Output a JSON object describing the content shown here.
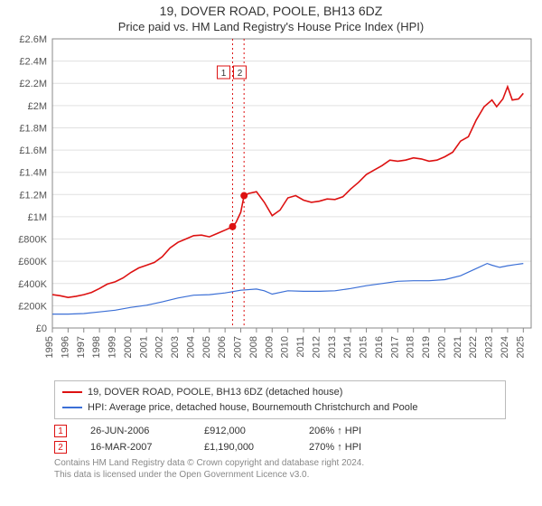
{
  "title_main": "19, DOVER ROAD, POOLE, BH13 6DZ",
  "title_sub": "Price paid vs. HM Land Registry's House Price Index (HPI)",
  "chart": {
    "type": "line",
    "background_color": "#ffffff",
    "grid_color": "#e0e0e0",
    "axis_color": "#888888",
    "xlim": [
      1995,
      2025.5
    ],
    "ylim": [
      0,
      2600000
    ],
    "xtick_years": [
      1995,
      1996,
      1997,
      1998,
      1999,
      2000,
      2001,
      2002,
      2003,
      2004,
      2005,
      2006,
      2007,
      2008,
      2009,
      2010,
      2011,
      2012,
      2013,
      2014,
      2015,
      2016,
      2017,
      2018,
      2019,
      2020,
      2021,
      2022,
      2023,
      2024,
      2025
    ],
    "yticks": [
      {
        "v": 0,
        "label": "£0"
      },
      {
        "v": 200000,
        "label": "£200K"
      },
      {
        "v": 400000,
        "label": "£400K"
      },
      {
        "v": 600000,
        "label": "£600K"
      },
      {
        "v": 800000,
        "label": "£800K"
      },
      {
        "v": 1000000,
        "label": "£1M"
      },
      {
        "v": 1200000,
        "label": "£1.2M"
      },
      {
        "v": 1400000,
        "label": "£1.4M"
      },
      {
        "v": 1600000,
        "label": "£1.6M"
      },
      {
        "v": 1800000,
        "label": "£1.8M"
      },
      {
        "v": 2000000,
        "label": "£2M"
      },
      {
        "v": 2200000,
        "label": "£2.2M"
      },
      {
        "v": 2400000,
        "label": "£2.4M"
      },
      {
        "v": 2600000,
        "label": "£2.6M"
      }
    ],
    "series": [
      {
        "name": "subject",
        "label": "19, DOVER ROAD, POOLE, BH13 6DZ (detached house)",
        "color": "#dd1111",
        "line_width": 1.6,
        "points": [
          [
            1995.0,
            300000
          ],
          [
            1995.5,
            290000
          ],
          [
            1996.0,
            275000
          ],
          [
            1996.5,
            285000
          ],
          [
            1997.0,
            300000
          ],
          [
            1997.5,
            320000
          ],
          [
            1998.0,
            355000
          ],
          [
            1998.5,
            395000
          ],
          [
            1999.0,
            415000
          ],
          [
            1999.5,
            450000
          ],
          [
            2000.0,
            500000
          ],
          [
            2000.5,
            540000
          ],
          [
            2001.0,
            565000
          ],
          [
            2001.5,
            590000
          ],
          [
            2002.0,
            640000
          ],
          [
            2002.5,
            720000
          ],
          [
            2003.0,
            770000
          ],
          [
            2003.5,
            800000
          ],
          [
            2004.0,
            830000
          ],
          [
            2004.5,
            835000
          ],
          [
            2005.0,
            820000
          ],
          [
            2005.5,
            850000
          ],
          [
            2006.0,
            880000
          ],
          [
            2006.48,
            912000
          ],
          [
            2006.7,
            950000
          ],
          [
            2007.0,
            1040000
          ],
          [
            2007.21,
            1190000
          ],
          [
            2007.5,
            1210000
          ],
          [
            2008.0,
            1225000
          ],
          [
            2008.5,
            1130000
          ],
          [
            2009.0,
            1010000
          ],
          [
            2009.5,
            1060000
          ],
          [
            2010.0,
            1170000
          ],
          [
            2010.5,
            1190000
          ],
          [
            2011.0,
            1150000
          ],
          [
            2011.5,
            1130000
          ],
          [
            2012.0,
            1140000
          ],
          [
            2012.5,
            1160000
          ],
          [
            2013.0,
            1155000
          ],
          [
            2013.5,
            1180000
          ],
          [
            2014.0,
            1250000
          ],
          [
            2014.5,
            1310000
          ],
          [
            2015.0,
            1380000
          ],
          [
            2015.5,
            1420000
          ],
          [
            2016.0,
            1460000
          ],
          [
            2016.5,
            1510000
          ],
          [
            2017.0,
            1500000
          ],
          [
            2017.5,
            1510000
          ],
          [
            2018.0,
            1530000
          ],
          [
            2018.5,
            1520000
          ],
          [
            2019.0,
            1500000
          ],
          [
            2019.5,
            1510000
          ],
          [
            2020.0,
            1540000
          ],
          [
            2020.5,
            1580000
          ],
          [
            2021.0,
            1680000
          ],
          [
            2021.5,
            1720000
          ],
          [
            2022.0,
            1870000
          ],
          [
            2022.5,
            1990000
          ],
          [
            2023.0,
            2050000
          ],
          [
            2023.3,
            1990000
          ],
          [
            2023.7,
            2060000
          ],
          [
            2024.0,
            2170000
          ],
          [
            2024.3,
            2050000
          ],
          [
            2024.7,
            2060000
          ],
          [
            2025.0,
            2110000
          ]
        ]
      },
      {
        "name": "hpi",
        "label": "HPI: Average price, detached house, Bournemouth Christchurch and Poole",
        "color": "#3b6fd6",
        "line_width": 1.2,
        "points": [
          [
            1995.0,
            125000
          ],
          [
            1996.0,
            125000
          ],
          [
            1997.0,
            130000
          ],
          [
            1998.0,
            145000
          ],
          [
            1999.0,
            160000
          ],
          [
            2000.0,
            185000
          ],
          [
            2001.0,
            205000
          ],
          [
            2002.0,
            235000
          ],
          [
            2003.0,
            270000
          ],
          [
            2004.0,
            295000
          ],
          [
            2005.0,
            300000
          ],
          [
            2006.0,
            315000
          ],
          [
            2007.0,
            340000
          ],
          [
            2008.0,
            350000
          ],
          [
            2008.5,
            335000
          ],
          [
            2009.0,
            305000
          ],
          [
            2010.0,
            335000
          ],
          [
            2011.0,
            330000
          ],
          [
            2012.0,
            330000
          ],
          [
            2013.0,
            335000
          ],
          [
            2014.0,
            355000
          ],
          [
            2015.0,
            380000
          ],
          [
            2016.0,
            400000
          ],
          [
            2017.0,
            420000
          ],
          [
            2018.0,
            425000
          ],
          [
            2019.0,
            425000
          ],
          [
            2020.0,
            435000
          ],
          [
            2021.0,
            470000
          ],
          [
            2022.0,
            535000
          ],
          [
            2022.7,
            580000
          ],
          [
            2023.0,
            565000
          ],
          [
            2023.5,
            545000
          ],
          [
            2024.0,
            560000
          ],
          [
            2024.5,
            570000
          ],
          [
            2025.0,
            580000
          ]
        ]
      }
    ]
  },
  "sale_markers": [
    {
      "n": "1",
      "year": 2006.48,
      "price": 912000,
      "color": "#dd1111"
    },
    {
      "n": "2",
      "year": 2007.21,
      "price": 1190000,
      "color": "#dd1111"
    }
  ],
  "legend": {
    "subject": "19, DOVER ROAD, POOLE, BH13 6DZ (detached house)",
    "hpi": "HPI: Average price, detached house, Bournemouth Christchurch and Poole"
  },
  "annotations": [
    {
      "n": "1",
      "date": "26-JUN-2006",
      "price": "£912,000",
      "hpi": "206% ↑ HPI",
      "color": "#dd1111"
    },
    {
      "n": "2",
      "date": "16-MAR-2007",
      "price": "£1,190,000",
      "hpi": "270% ↑ HPI",
      "color": "#dd1111"
    }
  ],
  "footnote_line1": "Contains HM Land Registry data © Crown copyright and database right 2024.",
  "footnote_line2": "This data is licensed under the Open Government Licence v3.0."
}
